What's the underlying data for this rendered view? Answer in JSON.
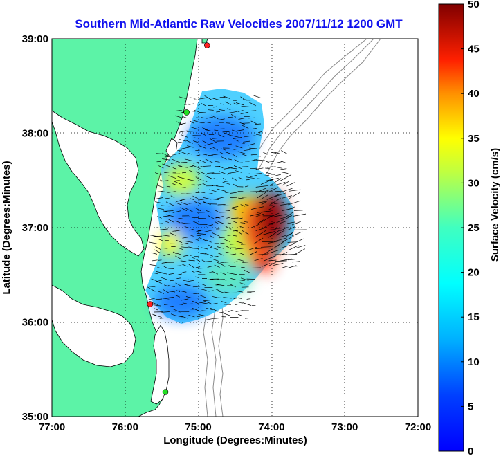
{
  "chart_data": {
    "type": "map-vector-field",
    "title": "Southern Mid-Atlantic Raw Velocities 2007/11/12 1200 GMT",
    "xlabel": "Longitude (Degrees:Minutes)",
    "ylabel": "Latitude (Degrees:Minutes)",
    "x_ticks": [
      "77:00",
      "76:00",
      "75:00",
      "74:00",
      "73:00",
      "72:00"
    ],
    "y_ticks": [
      "39:00",
      "38:00",
      "37:00",
      "36:00",
      "35:00"
    ],
    "xlim": [
      -77,
      -72
    ],
    "ylim": [
      35,
      39
    ],
    "grid": true,
    "colorbar": {
      "label": "Surface Velocity (cm/s)",
      "ticks": [
        "50",
        "45",
        "40",
        "35",
        "30",
        "25",
        "20",
        "15",
        "10",
        "5",
        "0"
      ],
      "range": [
        0,
        50
      ],
      "colormap": "jet"
    },
    "sites": [
      {
        "lon": -74.88,
        "lat": 38.93,
        "color": "#ff2020"
      },
      {
        "lon": -75.16,
        "lat": 38.22,
        "color": "#22dd22"
      },
      {
        "lon": -75.66,
        "lat": 36.19,
        "color": "#ff2020"
      },
      {
        "lon": -75.45,
        "lat": 35.26,
        "color": "#22dd22"
      }
    ],
    "velocity_regions": [
      {
        "lon": -74.72,
        "lat": 37.95,
        "speed": 8
      },
      {
        "lon": -75.04,
        "lat": 37.07,
        "speed": 6
      },
      {
        "lon": -75.3,
        "lat": 36.2,
        "speed": 8
      },
      {
        "lon": -74.1,
        "lat": 37.05,
        "speed": 47
      },
      {
        "lon": -74.45,
        "lat": 37.25,
        "speed": 28
      },
      {
        "lon": -74.6,
        "lat": 36.6,
        "speed": 22
      },
      {
        "lon": -75.4,
        "lat": 37.4,
        "speed": 20
      }
    ]
  },
  "colors": {
    "land": "#5cf3a7",
    "title": "#1010ee",
    "contour": "#8a8a8a"
  }
}
